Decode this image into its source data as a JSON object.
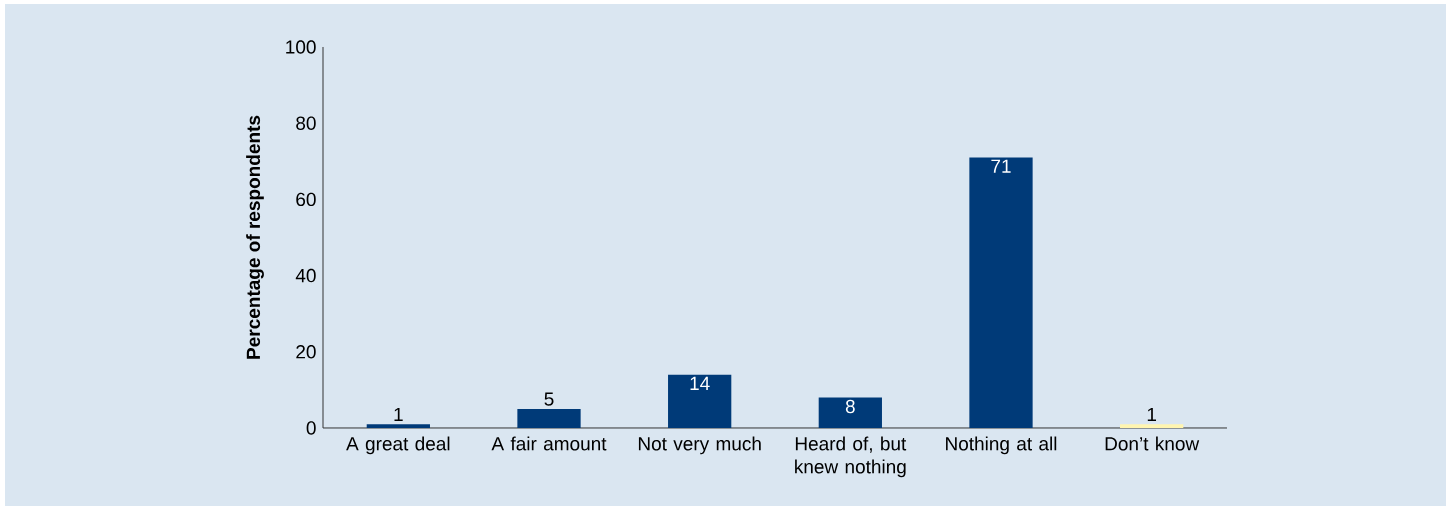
{
  "chart_data": {
    "type": "bar",
    "ylabel": "Percentage of respondents",
    "categories": [
      "A great deal",
      "A fair amount",
      "Not very much",
      "Heard of, but knew nothing",
      "Nothing at all",
      "Don’t know"
    ],
    "values": [
      1,
      5,
      14,
      8,
      71,
      1
    ],
    "colors": [
      "#003a78",
      "#003a78",
      "#003a78",
      "#003a78",
      "#003a78",
      "#fff5b0"
    ],
    "ylim": [
      0,
      100
    ],
    "yticks": [
      0,
      20,
      40,
      60,
      80,
      100
    ],
    "data_labels": true
  }
}
